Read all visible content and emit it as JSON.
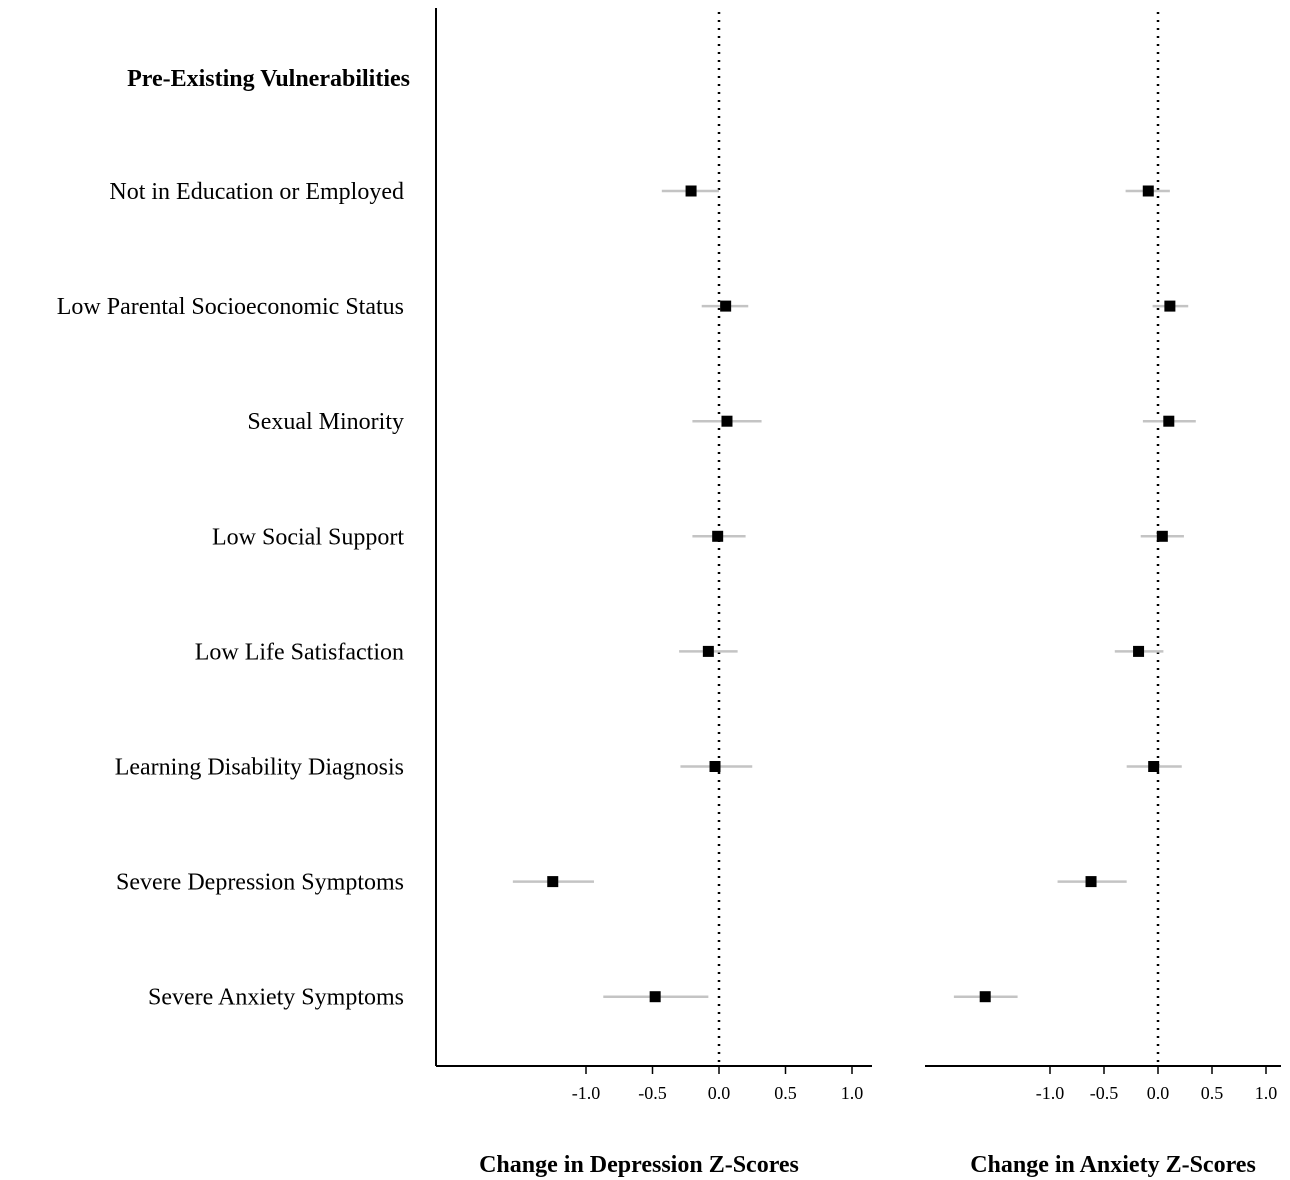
{
  "chart_data": {
    "type": "forest",
    "section_header": "Pre-Existing Vulnerabilities",
    "rows": [
      "Not in Education or Employed",
      "Low Parental Socioeconomic Status",
      "Sexual Minority",
      "Low Social Support",
      "Low Life Satisfaction",
      "Learning Disability Diagnosis",
      "Severe Depression Symptoms",
      "Severe Anxiety Symptoms"
    ],
    "reference_line": 0,
    "panels": [
      {
        "xlabel": "Change in Depression Z-Scores",
        "ticks": [
          -1.0,
          -0.5,
          0.0,
          0.5,
          1.0
        ],
        "tick_labels": [
          "-1.0",
          "-0.5",
          "0.0",
          "0.5",
          "1.0"
        ],
        "xlim": [
          -2.15,
          1.15
        ],
        "estimates": [
          -0.21,
          0.05,
          0.06,
          -0.01,
          -0.08,
          -0.03,
          -1.25,
          -0.48
        ],
        "lower": [
          -0.43,
          -0.13,
          -0.2,
          -0.2,
          -0.3,
          -0.29,
          -1.55,
          -0.87
        ],
        "upper": [
          0.0,
          0.22,
          0.32,
          0.2,
          0.14,
          0.25,
          -0.94,
          -0.08
        ]
      },
      {
        "xlabel": "Change in Anxiety Z-Scores",
        "ticks": [
          -1.0,
          -0.5,
          0.0,
          0.5,
          1.0
        ],
        "tick_labels": [
          "-1.0",
          "-0.5",
          "0.0",
          "0.5",
          "1.0"
        ],
        "xlim": [
          -2.15,
          1.15
        ],
        "estimates": [
          -0.09,
          0.11,
          0.1,
          0.04,
          -0.18,
          -0.04,
          -0.62,
          -1.6
        ],
        "lower": [
          -0.3,
          -0.05,
          -0.14,
          -0.16,
          -0.4,
          -0.29,
          -0.93,
          -1.89
        ],
        "upper": [
          0.11,
          0.28,
          0.35,
          0.24,
          0.05,
          0.22,
          -0.29,
          -1.3
        ]
      }
    ]
  }
}
